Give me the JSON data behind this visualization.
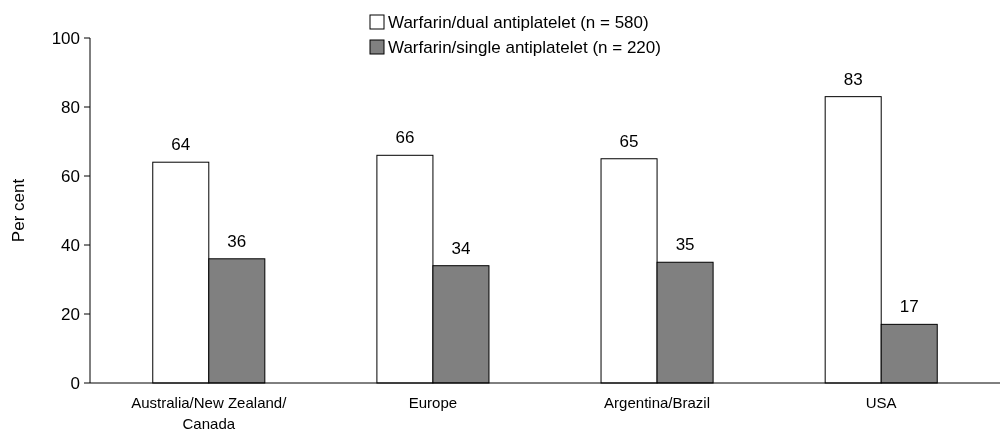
{
  "chart_data": {
    "type": "bar",
    "ylabel": "Per cent",
    "categories": [
      "Australia/New Zealand/ Canada",
      "Europe",
      "Argentina/Brazil",
      "USA"
    ],
    "series": [
      {
        "name": "Warfarin/dual antiplatelet (n = 580)",
        "color": "#ffffff",
        "values": [
          64,
          66,
          65,
          83
        ]
      },
      {
        "name": "Warfarin/single antiplatelet (n = 220)",
        "color": "#808080",
        "values": [
          36,
          34,
          35,
          17
        ]
      }
    ],
    "ylim": [
      0,
      100
    ],
    "yticks": [
      0,
      20,
      40,
      60,
      80,
      100
    ],
    "data_labels": true,
    "legend": "top",
    "grid": false
  }
}
